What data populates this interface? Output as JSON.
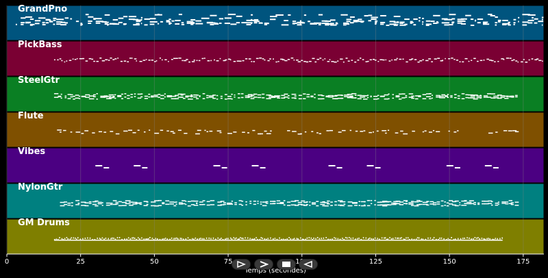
{
  "chart_data": {
    "type": "piano-roll",
    "xlabel": "Temps (secondes)",
    "xlim": [
      0,
      182
    ],
    "x_ticks": [
      0,
      25,
      50,
      75,
      100,
      125,
      150,
      175
    ],
    "grid": true,
    "tracks": [
      {
        "name": "GrandPno",
        "color": "#00547e",
        "start": 3,
        "end": 182,
        "pattern": "dense"
      },
      {
        "name": "PickBass",
        "color": "#7a0033",
        "start": 16,
        "end": 182,
        "pattern": "line"
      },
      {
        "name": "SteelGtr",
        "color": "#0a7f23",
        "start": 16,
        "end": 173,
        "pattern": "band"
      },
      {
        "name": "Flute",
        "color": "#7f5000",
        "start": 17,
        "end": 173,
        "pattern": "sparse"
      },
      {
        "name": "Vibes",
        "color": "#4b0082",
        "start": 30,
        "end": 166,
        "pattern": "pairs"
      },
      {
        "name": "NylonGtr",
        "color": "#008080",
        "start": 18,
        "end": 173,
        "pattern": "band"
      },
      {
        "name": "GM Drums",
        "color": "#7f7f00",
        "start": 16,
        "end": 168,
        "pattern": "drums"
      }
    ]
  },
  "controls": [
    {
      "name": "play-button",
      "icon": "play-outline-icon"
    },
    {
      "name": "forward-button",
      "icon": "forward-icon"
    },
    {
      "name": "stop-button",
      "icon": "stop-icon"
    },
    {
      "name": "rewind-button",
      "icon": "rewind-icon"
    }
  ]
}
